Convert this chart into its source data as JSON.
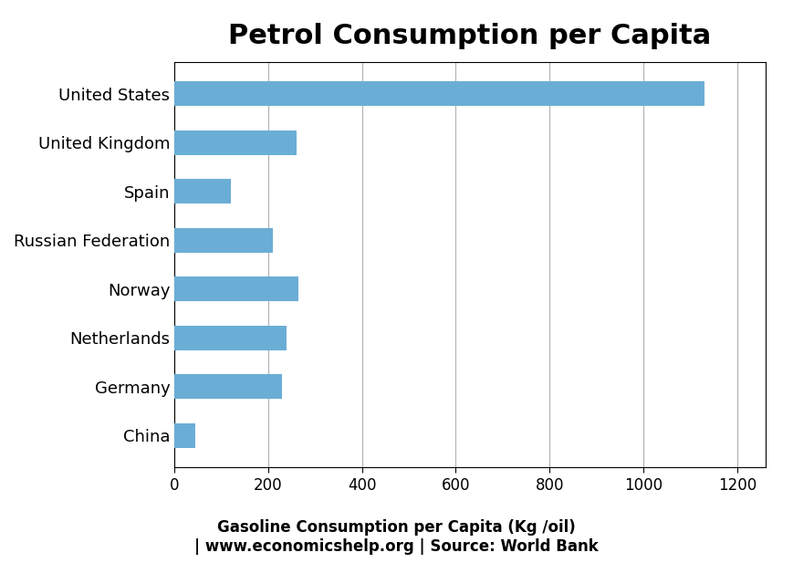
{
  "title": "Petrol Consumption per Capita",
  "categories": [
    "United States",
    "United Kingdom",
    "Spain",
    "Russian Federation",
    "Norway",
    "Netherlands",
    "Germany",
    "China"
  ],
  "values": [
    1130,
    260,
    120,
    210,
    265,
    240,
    230,
    45
  ],
  "bar_color": "#6aaed6",
  "xlim": [
    0,
    1260
  ],
  "xticks": [
    0,
    200,
    400,
    600,
    800,
    1000,
    1200
  ],
  "xlabel_line1": "Gasoline Consumption per Capita (Kg /oil)",
  "xlabel_line2": "| www.economicshelp.org | Source: World Bank",
  "title_fontsize": 22,
  "label_fontsize": 13,
  "tick_fontsize": 12,
  "bar_height": 0.5,
  "grid_color": "#b0b0b0",
  "background_color": "#ffffff",
  "border_color": "#000000"
}
